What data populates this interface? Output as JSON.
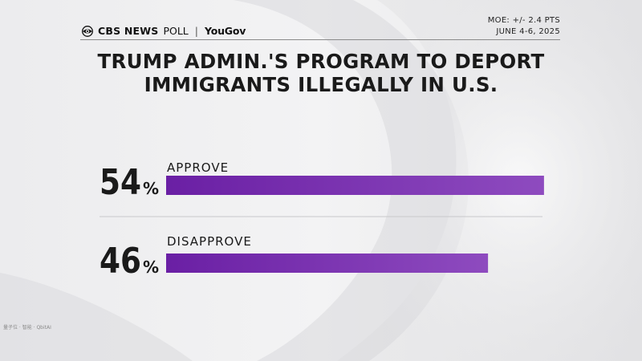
{
  "header": {
    "brand_cbs": "CBS NEWS",
    "brand_poll": "POLL",
    "brand_separator": "|",
    "brand_partner": "YouGov",
    "moe": "MOE: +/- 2.4 PTS",
    "dates": "JUNE 4-6, 2025"
  },
  "colors": {
    "bar_start": "#6a1fa4",
    "bar_end": "#8e4bbf",
    "text_dark": "#1a1a1a"
  },
  "chart_data": {
    "type": "bar",
    "orientation": "horizontal",
    "title": "TRUMP ADMIN.'S PROGRAM TO DEPORT IMMIGRANTS ILLEGALLY IN U.S.",
    "categories": [
      "APPROVE",
      "DISAPPROVE"
    ],
    "values": [
      54,
      46
    ],
    "value_suffix": "%",
    "xlim": [
      0,
      100
    ],
    "grid": false,
    "legend": "none"
  },
  "watermark": "量子位 · 智能 · QbitAI"
}
